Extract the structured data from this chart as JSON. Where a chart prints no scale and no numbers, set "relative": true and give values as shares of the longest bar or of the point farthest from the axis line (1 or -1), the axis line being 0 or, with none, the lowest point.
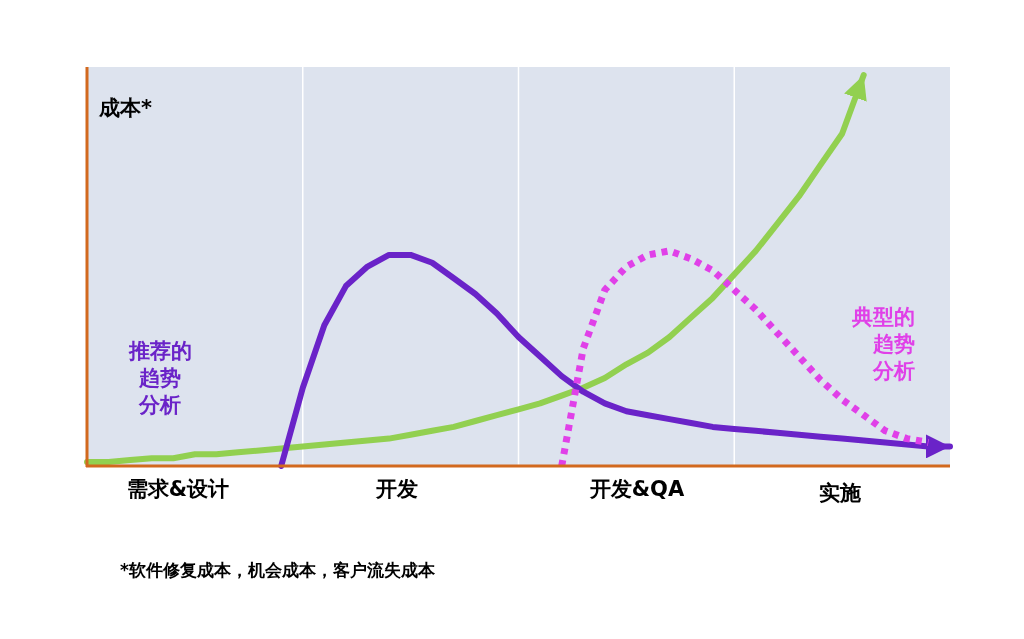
{
  "chart_data": {
    "type": "line",
    "relative": true,
    "ylabel": "成本*",
    "grid": "x",
    "categories": [
      null,
      null,
      null,
      null,
      null,
      null,
      null,
      null,
      null,
      null,
      null,
      null,
      null,
      null,
      null,
      null,
      null,
      null,
      null,
      null,
      null,
      null,
      null,
      null,
      null,
      null,
      null,
      null,
      null,
      null,
      null,
      null,
      null,
      null,
      null,
      null,
      null,
      null,
      null,
      null,
      null
    ],
    "series": [
      {
        "color": "#92d050",
        "line_style": "solid",
        "values": [
          0.01,
          0.01,
          0.015,
          0.02,
          0.02,
          0.03,
          0.03,
          0.035,
          0.04,
          0.045,
          0.05,
          0.055,
          0.06,
          0.065,
          0.07,
          0.08,
          0.09,
          0.1,
          0.115,
          0.13,
          0.145,
          0.16,
          0.18,
          0.2,
          0.225,
          0.26,
          0.29,
          0.33,
          0.38,
          0.43,
          0.49,
          0.55,
          0.62,
          0.69,
          0.77,
          0.85,
          1.0,
          null,
          null,
          null,
          null
        ]
      },
      {
        "name": "推荐的趋势分析",
        "color": "#6a23c8",
        "line_style": "solid",
        "values": [
          null,
          null,
          null,
          null,
          null,
          null,
          null,
          null,
          null,
          0,
          0.2,
          0.36,
          0.46,
          0.51,
          0.54,
          0.54,
          0.52,
          0.48,
          0.44,
          0.39,
          0.33,
          0.28,
          0.23,
          0.19,
          0.16,
          0.14,
          0.13,
          0.12,
          0.11,
          0.1,
          0.095,
          0.09,
          0.085,
          0.08,
          0.075,
          0.07,
          0.065,
          0.06,
          0.055,
          0.05,
          0.05
        ]
      },
      {
        "name": "典型的趋势分析",
        "color": "#e040e8",
        "line_style": "dotted",
        "values": [
          null,
          null,
          null,
          null,
          null,
          null,
          null,
          null,
          null,
          null,
          null,
          null,
          null,
          null,
          null,
          null,
          null,
          null,
          null,
          null,
          null,
          null,
          0,
          0.3,
          0.45,
          0.51,
          0.54,
          0.55,
          0.53,
          0.5,
          0.45,
          0.4,
          0.34,
          0.28,
          0.22,
          0.17,
          0.13,
          0.09,
          0.07,
          0.06,
          null
        ]
      }
    ],
    "annotations": [
      "需求&设计",
      "开发",
      "开发&QA",
      "实施",
      "*软件修复成本，机会成本，客户流失成本"
    ]
  }
}
